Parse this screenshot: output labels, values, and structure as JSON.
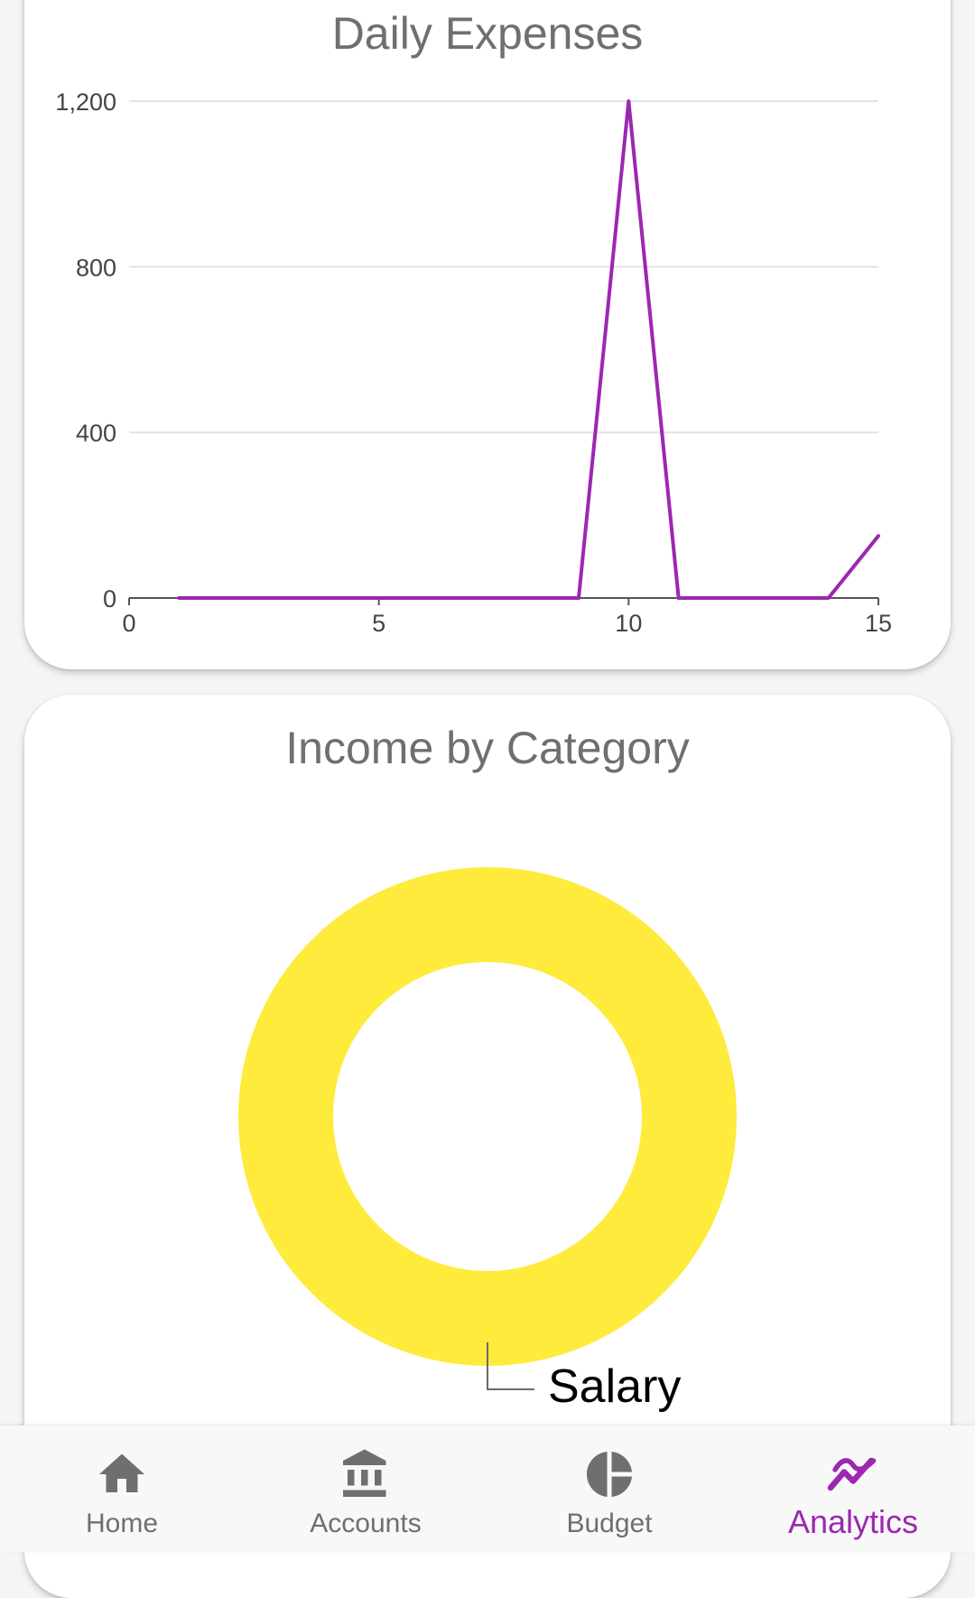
{
  "expenses_card": {
    "title": "Daily Expenses"
  },
  "income_card": {
    "title": "Income by Category"
  },
  "chart_data": [
    {
      "type": "line",
      "title": "Daily Expenses",
      "xlabel": "",
      "ylabel": "",
      "x": [
        1,
        2,
        3,
        4,
        5,
        6,
        7,
        8,
        9,
        10,
        11,
        12,
        13,
        14,
        15
      ],
      "series": [
        {
          "values": [
            0,
            0,
            0,
            0,
            0,
            0,
            0,
            0,
            0,
            1200,
            0,
            0,
            0,
            0,
            150
          ]
        }
      ],
      "xlim": [
        0,
        15
      ],
      "ylim": [
        0,
        1200
      ],
      "x_ticks": [
        "0",
        "5",
        "10",
        "15"
      ],
      "y_ticks": [
        "0",
        "400",
        "800",
        "1,200"
      ],
      "grid": true,
      "color": "#9c27b0"
    },
    {
      "type": "pie",
      "title": "Income by Category",
      "donut": true,
      "categories": [
        "Salary"
      ],
      "values": [
        100
      ],
      "colors": [
        "#ffeb3b"
      ],
      "legend": "outside-label"
    }
  ],
  "bottom_nav": {
    "items": [
      {
        "label": "Home",
        "icon": "home-icon"
      },
      {
        "label": "Accounts",
        "icon": "bank-icon"
      },
      {
        "label": "Budget",
        "icon": "pie-chart-icon"
      },
      {
        "label": "Analytics",
        "icon": "trending-icon"
      }
    ],
    "active_index": 3,
    "active_color": "#9c27b0",
    "inactive_color": "#6f6f6f"
  }
}
